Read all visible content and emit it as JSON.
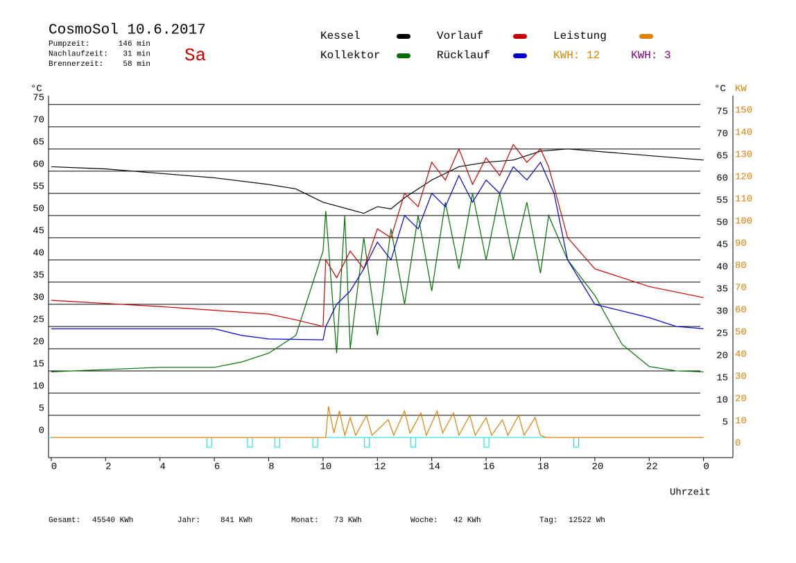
{
  "chart_data": {
    "type": "line",
    "title": "CosmoSol 10.6.2017",
    "day": "Sa",
    "stats": [
      {
        "label": "Pumpzeit:",
        "value": "146 min"
      },
      {
        "label": "Nachlaufzeit:",
        "value": "31 min"
      },
      {
        "label": "Brennerzeit:",
        "value": "58 min"
      }
    ],
    "energy": [
      {
        "label": "KWH: 12",
        "color": "#e08000"
      },
      {
        "label": "KWH: 3",
        "color": "#800080"
      }
    ],
    "y_unit": "°C",
    "y2_unit": "KW",
    "x_label": "Uhrzeit",
    "xlim": [
      -0.1,
      25.08
    ],
    "xticks": [
      0,
      2,
      4,
      6,
      8,
      10,
      12,
      14,
      16,
      18,
      20,
      22,
      {
        "value": 24,
        "label": "0"
      }
    ],
    "ylim": [
      -5,
      77
    ],
    "yticks": [
      0,
      5,
      10,
      15,
      20,
      25,
      30,
      35,
      40,
      45,
      50,
      55,
      60,
      65,
      70,
      75
    ],
    "yticks_right": [
      5,
      10,
      15,
      20,
      25,
      30,
      35,
      40,
      45,
      50,
      55,
      60,
      65,
      70,
      75
    ],
    "y2lim": [
      -10,
      154
    ],
    "y2ticks": [
      0,
      10,
      20,
      30,
      40,
      50,
      60,
      70,
      80,
      90,
      100,
      110,
      120,
      130,
      140,
      150
    ],
    "grid": true,
    "pulses": [
      5.8,
      7.3,
      8.3,
      9.7,
      11.6,
      13.3,
      16,
      19.3
    ],
    "series": [
      {
        "name": "Kessel",
        "color": "#000000",
        "x": [
          0,
          2,
          4,
          6,
          8,
          9,
          10,
          11.5,
          12,
          12.5,
          13,
          14,
          15,
          16,
          17,
          18,
          19,
          20,
          22,
          24
        ],
        "values": [
          61,
          60.5,
          59.5,
          58.5,
          57,
          56,
          53,
          50.5,
          52,
          51.5,
          54,
          58,
          61,
          62,
          62.5,
          64.5,
          65,
          64.5,
          63.5,
          62.5
        ]
      },
      {
        "name": "Kollektor",
        "color": "#007000",
        "x": [
          0,
          4,
          6,
          7,
          8,
          9,
          10,
          10.1,
          10.5,
          10.8,
          11,
          11.5,
          12,
          12.5,
          13,
          13.5,
          14,
          14.5,
          15,
          15.5,
          16,
          16.5,
          17,
          17.5,
          18,
          18.3,
          19,
          20,
          21,
          22,
          23,
          24
        ],
        "values": [
          14.8,
          15.8,
          15.8,
          17,
          19,
          23,
          42,
          51,
          19,
          50,
          20,
          45,
          23,
          47,
          30,
          50,
          33,
          53,
          38,
          55,
          40,
          55,
          40,
          53,
          37,
          50,
          40,
          32,
          21,
          16,
          15,
          14.8
        ]
      },
      {
        "name": "Vorlauf",
        "color": "#cc0000",
        "x": [
          0,
          4,
          8,
          9,
          10,
          10.1,
          10.5,
          11,
          11.5,
          12,
          12.5,
          13,
          13.5,
          14,
          14.5,
          15,
          15.5,
          16,
          16.5,
          17,
          17.5,
          18,
          18.3,
          19,
          20,
          22,
          24
        ],
        "values": [
          30.9,
          29.5,
          27.8,
          26.5,
          25,
          40,
          36,
          42,
          38,
          47,
          45,
          55,
          52,
          62,
          58,
          65,
          57,
          63,
          59,
          66,
          62,
          65,
          61,
          45,
          38,
          34,
          31.5
        ]
      },
      {
        "name": "Rücklauf",
        "color": "#0000cc",
        "x": [
          0,
          6,
          7,
          8,
          10,
          10.1,
          10.5,
          11,
          11.5,
          12,
          12.5,
          13,
          13.5,
          14,
          14.5,
          15,
          15.5,
          16,
          16.5,
          17,
          17.5,
          18,
          18.5,
          19,
          20,
          22,
          23,
          24
        ],
        "values": [
          24.5,
          24.5,
          23,
          22.2,
          22,
          25,
          30,
          33,
          38,
          44,
          40,
          50,
          47,
          55,
          52,
          59,
          53,
          58,
          55,
          61,
          58,
          62,
          55,
          40,
          30,
          27,
          25,
          24.5
        ]
      },
      {
        "name": "Leistung",
        "color": "#e08000",
        "axis": "y2",
        "x": [
          0,
          10.1,
          10.2,
          10.4,
          10.6,
          10.8,
          11,
          11.2,
          11.6,
          11.8,
          12.4,
          12.6,
          13,
          13.2,
          13.6,
          13.8,
          14.2,
          14.4,
          14.8,
          15,
          15.4,
          15.6,
          16,
          16.2,
          16.6,
          16.8,
          17.2,
          17.4,
          17.8,
          18,
          18.2,
          24
        ],
        "values": [
          0,
          0,
          14,
          2,
          12,
          1,
          9,
          1,
          10,
          1,
          8,
          1,
          12,
          2,
          11,
          1,
          12,
          2,
          11,
          1,
          10,
          1,
          9,
          1,
          8,
          1,
          10,
          1,
          9,
          1,
          0,
          0
        ]
      }
    ],
    "totals": [
      {
        "label": "Gesamt:",
        "value": "45540 KWh"
      },
      {
        "label": "Jahr:",
        "value": "841 KWh"
      },
      {
        "label": "Monat:",
        "value": "73 KWh"
      },
      {
        "label": "Woche:",
        "value": "42 KWh"
      },
      {
        "label": "Tag:",
        "value": "12522 Wh"
      }
    ]
  }
}
